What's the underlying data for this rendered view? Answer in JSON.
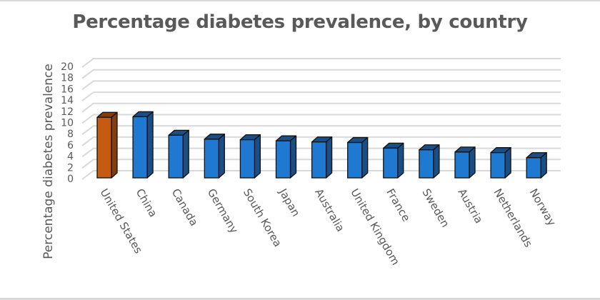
{
  "chart_data": {
    "type": "bar",
    "title": "Percentage diabetes prevalence, by country",
    "xlabel": "",
    "ylabel": "Percentage diabetes prevalence",
    "ylim": [
      0,
      20
    ],
    "yticks": [
      0,
      2,
      4,
      6,
      8,
      10,
      12,
      14,
      16,
      18,
      20
    ],
    "grid": true,
    "style": "3d-column",
    "categories": [
      "United States",
      "China",
      "Canada",
      "Germany",
      "South Korea",
      "Japan",
      "Australia",
      "United Kingdom",
      "France",
      "Sweden",
      "Austria",
      "Netherlands",
      "Norway"
    ],
    "values": [
      10.8,
      10.9,
      7.6,
      6.9,
      6.8,
      6.6,
      6.4,
      6.3,
      5.3,
      5.0,
      4.6,
      4.5,
      3.6
    ],
    "colors": {
      "highlight": "#c55a11",
      "highlight_side": "#843c0c",
      "default": "#2079d0",
      "default_side": "#1a4e85",
      "gridline": "#d9d9d9",
      "text": "#595959"
    },
    "highlighted_category": "United States"
  }
}
